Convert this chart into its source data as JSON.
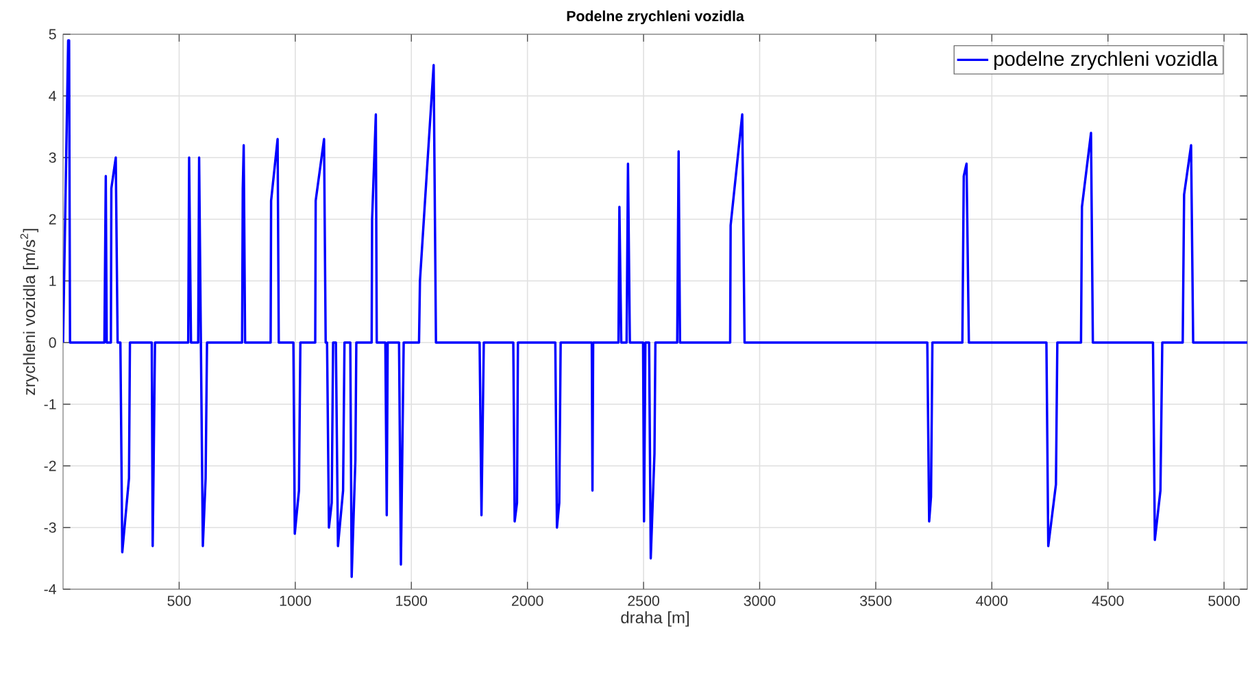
{
  "chart_data": {
    "type": "line",
    "title": "Podelne zrychleni vozidla",
    "xlabel": "draha [m]",
    "ylabel": "zrychleni vozidla [m/s$^{2}$]",
    "xlim": [
      0,
      5100
    ],
    "ylim": [
      -4,
      5
    ],
    "xticks": [
      500,
      1000,
      1500,
      2000,
      2500,
      3000,
      3500,
      4000,
      4500,
      5000
    ],
    "yticks": [
      -4,
      -3,
      -2,
      -1,
      0,
      1,
      2,
      3,
      4,
      5
    ],
    "grid": true,
    "legend": "top right",
    "marker": "none",
    "line_style": "solid",
    "series": [
      {
        "name": "podelne zrychleni vozidla",
        "color": "#0000ff",
        "x": [
          0,
          22,
          26,
          30,
          178,
          184,
          188,
          206,
          208,
          227,
          235,
          247,
          255,
          284,
          288,
          382,
          386,
          396,
          539,
          543,
          551,
          582,
          586,
          602,
          614,
          620,
          771,
          774,
          778,
          784,
          894,
          896,
          924,
          929,
          992,
          998,
          1016,
          1022,
          1086,
          1088,
          1124,
          1131,
          1137,
          1145,
          1157,
          1163,
          1175,
          1184,
          1206,
          1212,
          1237,
          1243,
          1259,
          1263,
          1329,
          1331,
          1347,
          1351,
          1388,
          1394,
          1398,
          1447,
          1455,
          1467,
          1533,
          1537,
          1596,
          1606,
          1794,
          1802,
          1812,
          1939,
          1945,
          1955,
          1959,
          2120,
          2127,
          2137,
          2143,
          2277,
          2280,
          2283,
          2392,
          2396,
          2404,
          2427,
          2433,
          2441,
          2498,
          2502,
          2508,
          2524,
          2531,
          2547,
          2551,
          2645,
          2651,
          2657,
          2873,
          2875,
          2925,
          2935,
          3722,
          3730,
          3738,
          3744,
          3873,
          3879,
          3891,
          3901,
          4235,
          4243,
          4276,
          4282,
          4384,
          4388,
          4427,
          4435,
          4694,
          4702,
          4726,
          4734,
          4822,
          4828,
          4858,
          4867,
          5100
        ],
        "values": [
          0,
          4.9,
          4.9,
          0,
          0,
          2.7,
          0,
          0,
          2.5,
          3.0,
          0,
          0,
          -3.4,
          -2.2,
          0,
          0,
          -3.3,
          0,
          0,
          3.0,
          0,
          0,
          3.0,
          -3.3,
          -2.2,
          0,
          0,
          2.5,
          3.2,
          0,
          0,
          2.3,
          3.3,
          0,
          0,
          -3.1,
          -2.4,
          0,
          0,
          2.3,
          3.3,
          0,
          0,
          -3.0,
          -2.6,
          0,
          0,
          -3.3,
          -2.4,
          0,
          0,
          -3.8,
          -1.9,
          0,
          0,
          2.0,
          3.7,
          0,
          0,
          -2.8,
          0,
          0,
          -3.6,
          0,
          0,
          1.0,
          4.5,
          0,
          0,
          -2.8,
          0,
          0,
          -2.9,
          -2.6,
          0,
          0,
          -3.0,
          -2.6,
          0,
          0,
          -2.4,
          0,
          0,
          2.2,
          0,
          0,
          2.9,
          0,
          0,
          -2.9,
          0,
          0,
          -3.5,
          -1.8,
          0,
          0,
          3.1,
          0,
          0,
          1.9,
          3.7,
          0,
          0,
          -2.9,
          -2.5,
          0,
          0,
          2.7,
          2.9,
          0,
          0,
          -3.3,
          -2.3,
          0,
          0,
          2.2,
          3.4,
          0,
          0,
          -3.2,
          -2.4,
          0,
          0,
          2.4,
          3.2,
          0,
          0
        ]
      }
    ]
  }
}
